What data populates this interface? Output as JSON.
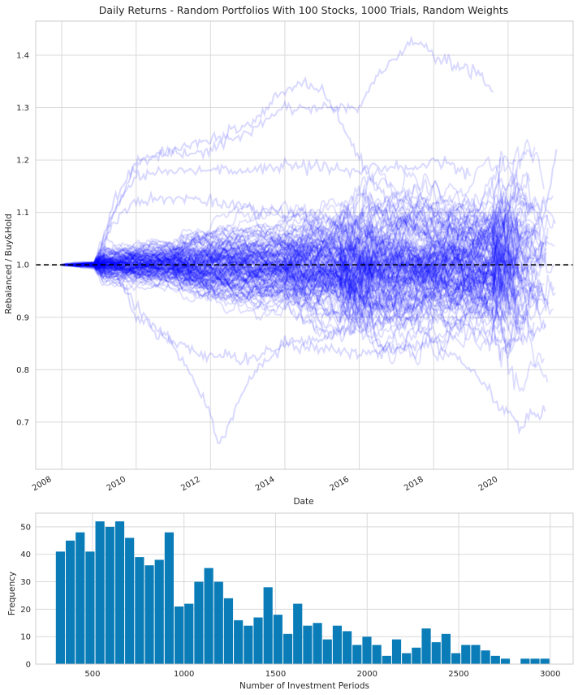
{
  "chart_data": [
    {
      "type": "line",
      "title": "Daily Returns - Random Portfolios With 100 Stocks, 1000 Trials, Random Weights",
      "xlabel": "Date",
      "ylabel": "Rebalanced / Buy&Hold",
      "xlim": [
        2007.3,
        2021.75
      ],
      "ylim": [
        0.61,
        1.465
      ],
      "x_ticks": [
        "2008",
        "2010",
        "2012",
        "2014",
        "2016",
        "2018",
        "2020"
      ],
      "y_ticks": [
        "0.7",
        "0.8",
        "0.9",
        "1.0",
        "1.1",
        "1.2",
        "1.3",
        "1.4"
      ],
      "grid": true,
      "line_color": "#0000ff",
      "reference_line": {
        "y": 1.0,
        "style": "dashed",
        "color": "#000000"
      },
      "series_count": 1000,
      "sample_paths": [
        {
          "x": [
            2008.9,
            2009.4,
            2010.0,
            2011.0,
            2012.0,
            2013.0,
            2014.0,
            2015.0,
            2016.0,
            2016.5,
            2017.0,
            2017.5,
            2018.0,
            2018.5,
            2019.2,
            2019.6
          ],
          "y": [
            1.0,
            1.12,
            1.2,
            1.21,
            1.22,
            1.25,
            1.3,
            1.3,
            1.3,
            1.36,
            1.4,
            1.43,
            1.4,
            1.38,
            1.37,
            1.33
          ]
        },
        {
          "x": [
            2008.9,
            2009.4,
            2010.0,
            2011.0,
            2012.0,
            2013.0,
            2014.0,
            2014.5,
            2015.0,
            2015.5,
            2016.0,
            2016.5,
            2017.0,
            2018.0,
            2019.0
          ],
          "y": [
            1.0,
            1.1,
            1.19,
            1.22,
            1.24,
            1.27,
            1.33,
            1.35,
            1.33,
            1.27,
            1.2,
            1.15,
            1.1,
            1.05,
            1.0
          ]
        },
        {
          "x": [
            2008.9,
            2009.4,
            2010.0,
            2011.0,
            2012.0,
            2013.0,
            2014.0,
            2015.0,
            2016.0,
            2017.0,
            2017.5,
            2018.0,
            2018.5,
            2019.0
          ],
          "y": [
            1.0,
            1.1,
            1.17,
            1.18,
            1.18,
            1.18,
            1.19,
            1.19,
            1.18,
            1.19,
            1.18,
            1.2,
            1.19,
            1.17
          ]
        },
        {
          "x": [
            2008.9,
            2009.4,
            2010.0,
            2011.0,
            2012.0,
            2013.0,
            2014.0,
            2015.0,
            2016.0,
            2017.0,
            2018.0,
            2019.0,
            2020.0,
            2021.0,
            2021.3
          ],
          "y": [
            1.0,
            1.08,
            1.12,
            1.13,
            1.12,
            1.11,
            1.1,
            1.09,
            1.05,
            1.09,
            1.05,
            1.02,
            1.0,
            1.1,
            1.22
          ]
        },
        {
          "x": [
            2008.9,
            2009.6,
            2010.0,
            2011.0,
            2012.0,
            2012.2,
            2013.0,
            2014.0,
            2015.0,
            2016.0,
            2017.0,
            2018.0,
            2019.0,
            2020.0,
            2021.0
          ],
          "y": [
            1.0,
            0.97,
            0.9,
            0.85,
            0.72,
            0.65,
            0.78,
            0.85,
            0.86,
            0.88,
            0.9,
            0.9,
            0.88,
            0.85,
            0.88
          ]
        },
        {
          "x": [
            2008.9,
            2009.6,
            2010.0,
            2011.0,
            2012.0,
            2013.0,
            2014.0,
            2015.0,
            2016.0,
            2017.0,
            2018.0,
            2019.0,
            2019.8,
            2020.3,
            2021.0
          ],
          "y": [
            1.0,
            0.97,
            0.92,
            0.85,
            0.83,
            0.82,
            0.85,
            0.84,
            0.83,
            0.84,
            0.85,
            0.8,
            0.73,
            0.7,
            0.72
          ]
        }
      ]
    },
    {
      "type": "bar",
      "title": "",
      "xlabel": "Number of Investment Periods",
      "ylabel": "Frequency",
      "xlim": [
        190,
        3125
      ],
      "ylim": [
        0,
        55
      ],
      "x_ticks": [
        "500",
        "1000",
        "1500",
        "2000",
        "2500",
        "3000"
      ],
      "y_ticks": [
        "0",
        "10",
        "20",
        "30",
        "40",
        "50"
      ],
      "grid": true,
      "bar_color": "#0a7db8",
      "bin_start": 300,
      "bin_width": 54,
      "values": [
        41,
        45,
        48,
        41,
        52,
        50,
        52,
        46,
        39,
        36,
        38,
        48,
        21,
        22,
        30,
        35,
        30,
        24,
        16,
        14,
        17,
        28,
        18,
        11,
        22,
        14,
        15,
        9,
        14,
        12,
        7,
        10,
        7,
        3,
        9,
        4,
        6,
        13,
        8,
        11,
        4,
        7,
        7,
        5,
        3,
        2,
        0,
        2,
        2,
        2
      ]
    }
  ]
}
